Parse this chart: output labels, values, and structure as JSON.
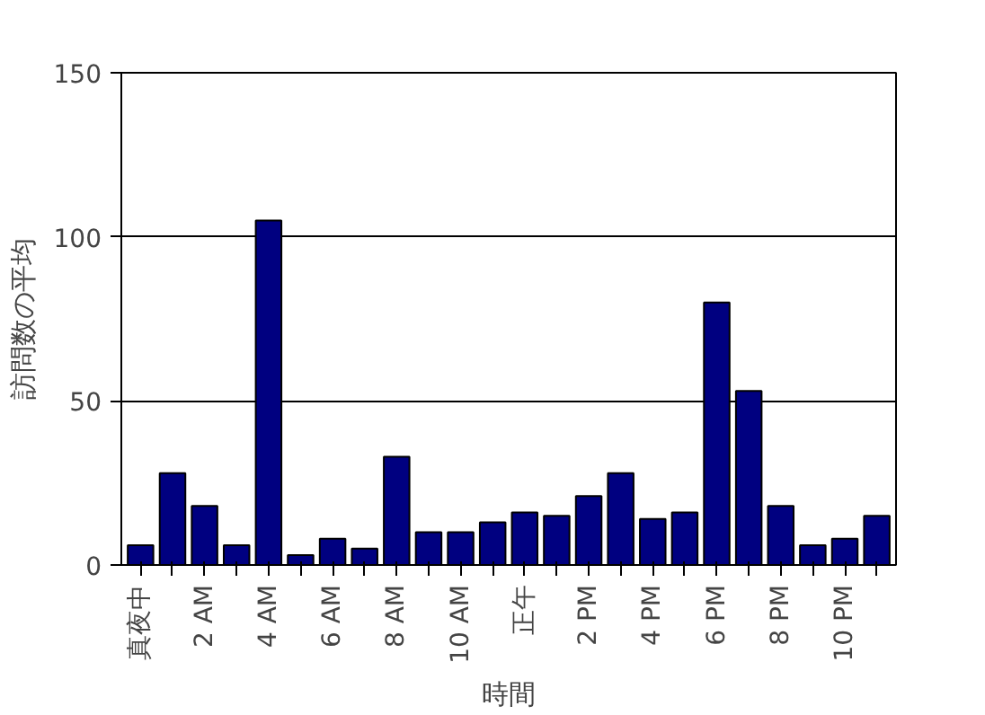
{
  "chart_data": {
    "type": "bar",
    "xlabel": "時間",
    "ylabel": "訪問数の平均",
    "categories": [
      "真夜中",
      null,
      "2 AM",
      null,
      "4 AM",
      null,
      "6 AM",
      null,
      "8 AM",
      null,
      "10 AM",
      null,
      "正午",
      null,
      "2 PM",
      null,
      "4 PM",
      null,
      "6 PM",
      null,
      "8 PM",
      null,
      "10 PM",
      null
    ],
    "values": [
      6,
      28,
      18,
      6,
      105,
      3,
      8,
      5,
      33,
      10,
      10,
      13,
      16,
      15,
      21,
      28,
      14,
      16,
      80,
      53,
      18,
      6,
      8,
      15
    ],
    "color": "#000080",
    "ylim": [
      0,
      150
    ],
    "yticks": [
      0,
      50,
      100,
      150
    ],
    "grid": "y"
  }
}
